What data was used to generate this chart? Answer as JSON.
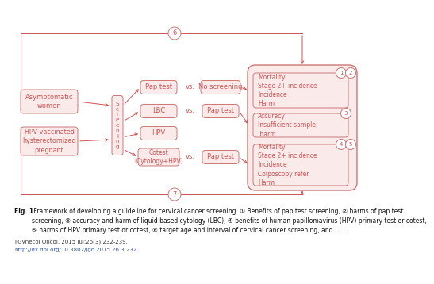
{
  "bg_color": "#ffffff",
  "box_fill": "#faeaea",
  "box_edge": "#cc7777",
  "arrow_color": "#cc5555",
  "text_color": "#cc5555",
  "title_bold": "Fig. 1.",
  "title_rest": " Framework of developing a guideline for cervical cancer screening. ① Benefits of pap test screening, ② harms of pap test\nscreening, ③ accuracy and harm of liquid based cytology (LBC), ④ benefits of human papillomavirus (HPV) primary test or cotest,\n⑤ harms of HPV primary test or cotest, ⑥ target age and interval of cervical cancer screening, and . . .",
  "journal_line": "J Gynecol Oncol. 2015 Jul;26(3):232-239.",
  "doi_line": "http://dx.doi.org/10.3802/jgo.2015.26.3.232"
}
